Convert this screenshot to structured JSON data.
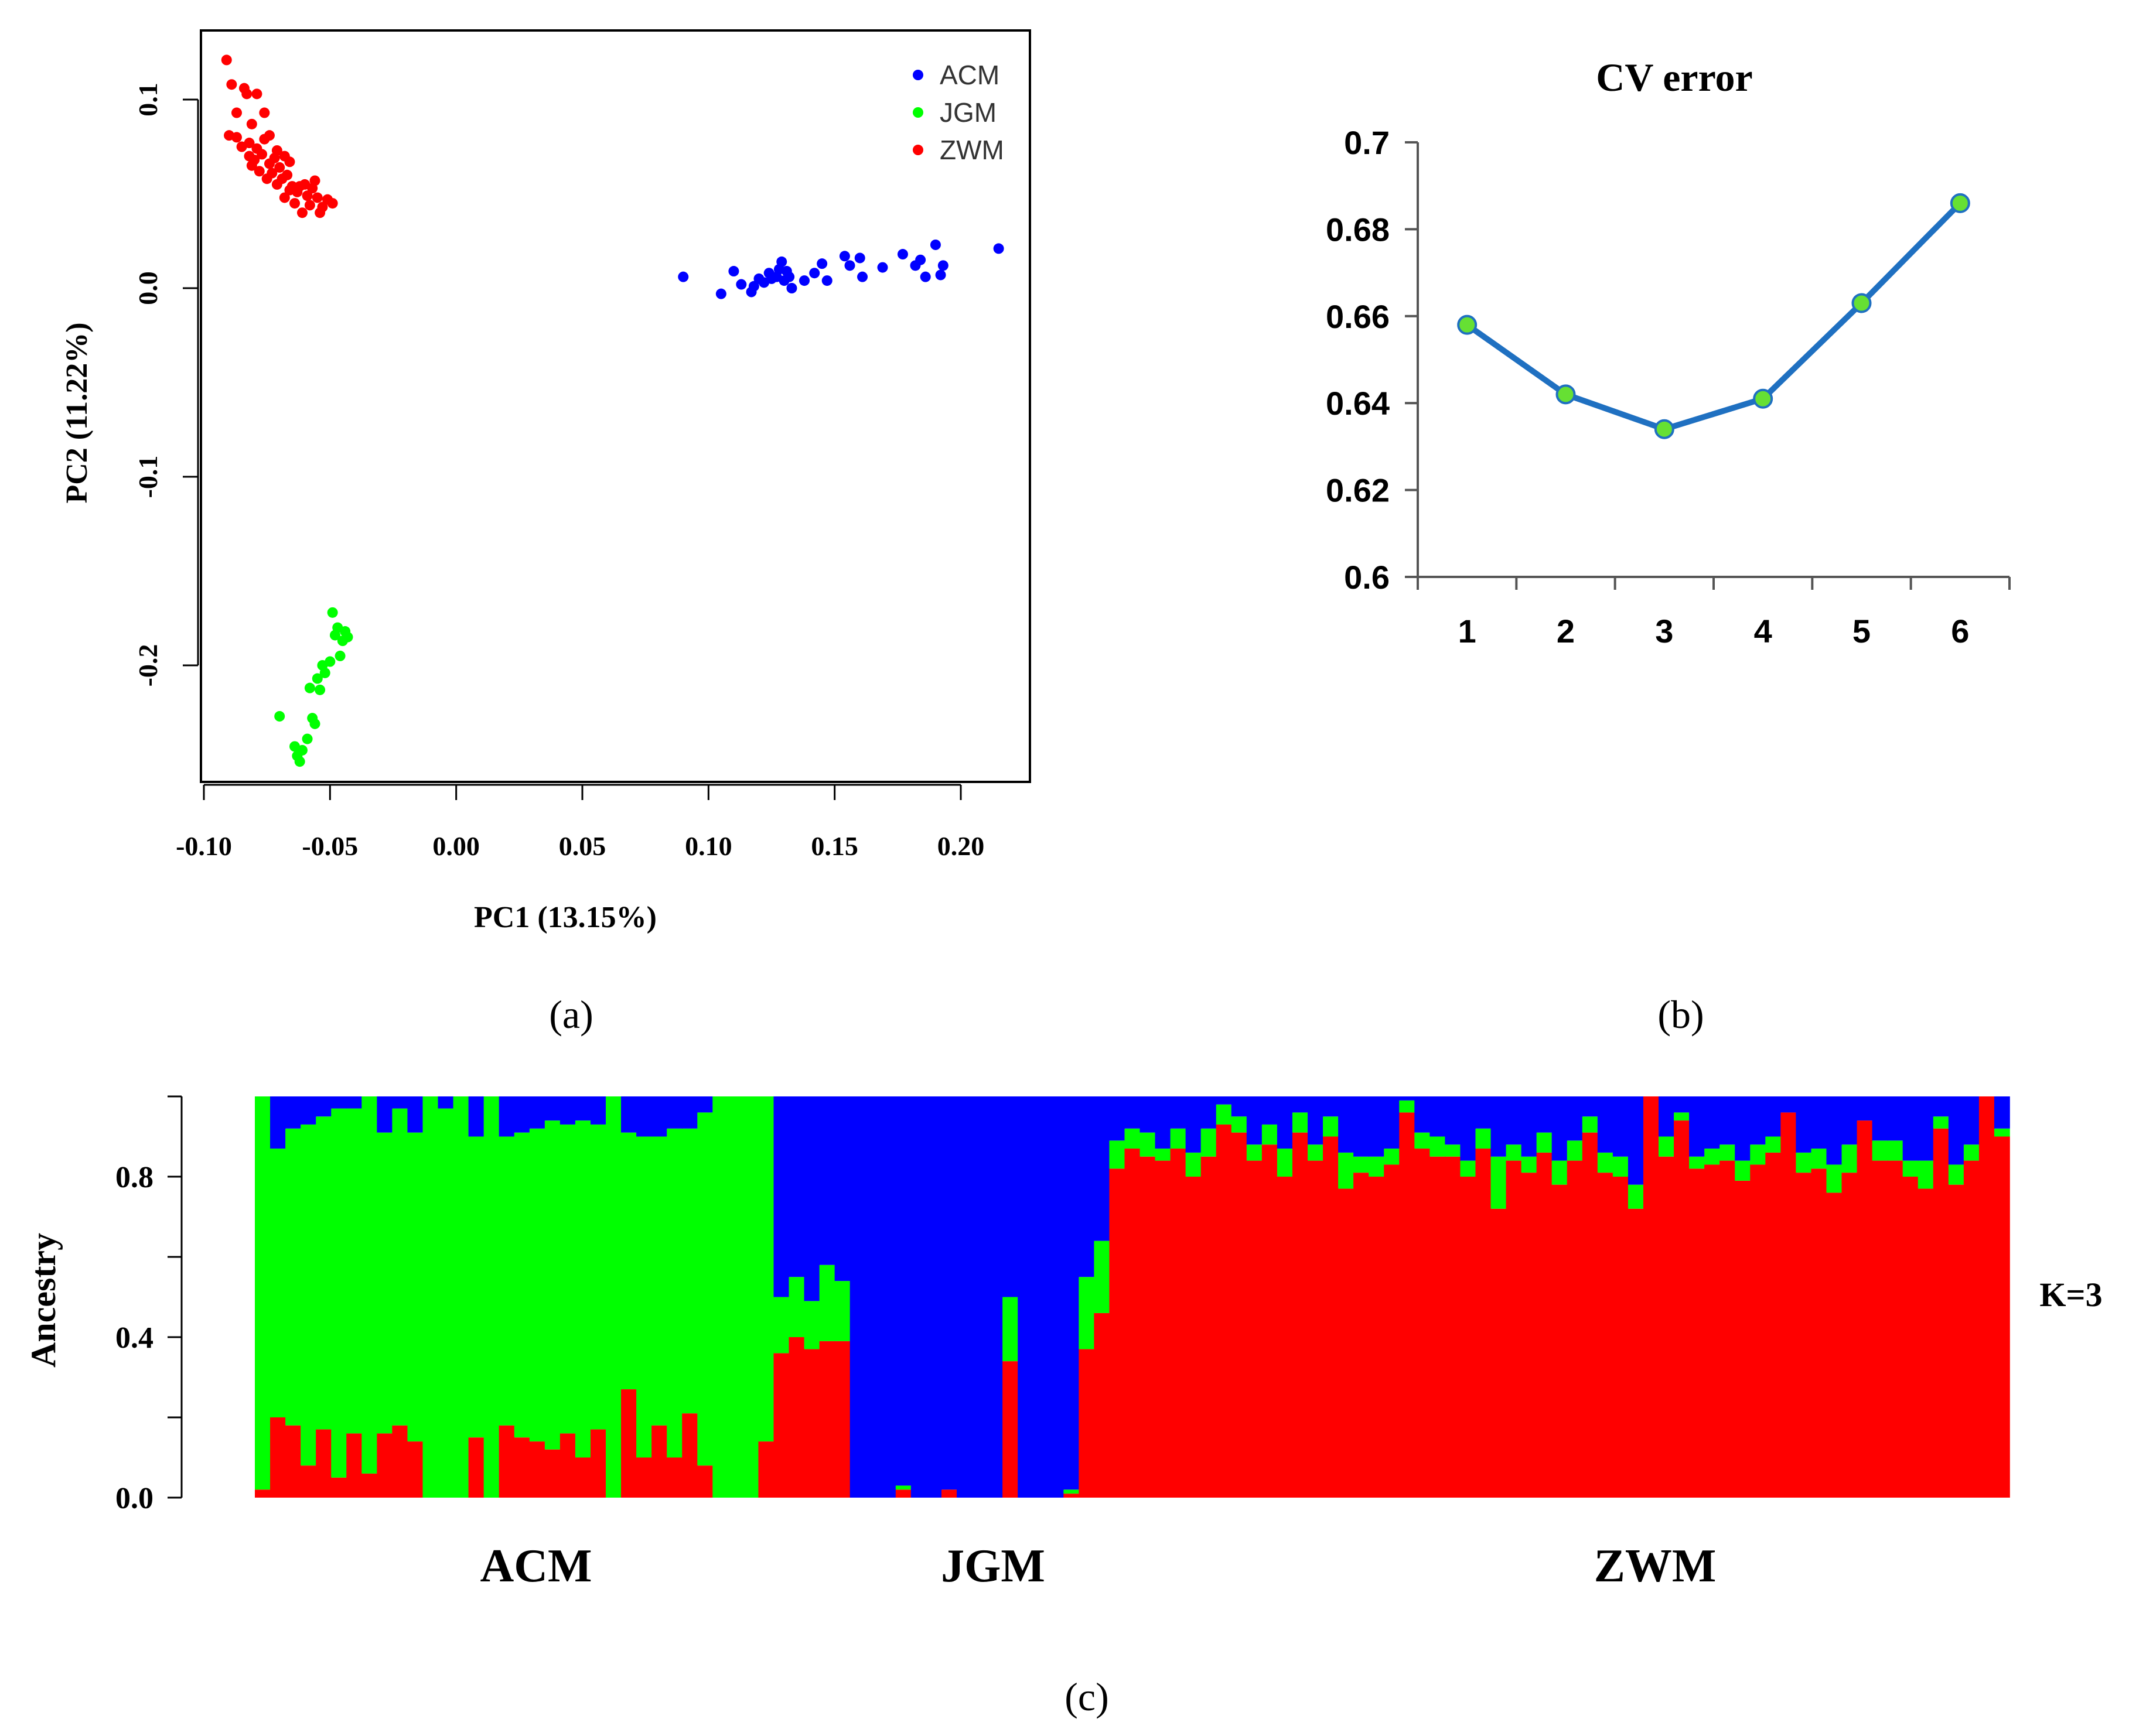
{
  "colors": {
    "ACM": "#0000ff",
    "JGM": "#00ff00",
    "ZWM": "#ff0000",
    "line": "#1f70c1",
    "marker": "#66e033",
    "axis": "#555555"
  },
  "panel_labels": {
    "a": "(a)",
    "b": "(b)",
    "c": "(c)"
  },
  "chart_data": [
    {
      "type": "scatter",
      "xlabel": "PC1 (13.15%)",
      "ylabel": "PC2 (11.22%)",
      "xlim": [
        -0.1,
        0.22
      ],
      "ylim": [
        -0.262,
        0.129
      ],
      "xticks": [
        -0.1,
        -0.05,
        0.0,
        0.05,
        0.1,
        0.15,
        0.2
      ],
      "xtick_labels": [
        "-0.10",
        "-0.05",
        "0.00",
        "0.05",
        "0.10",
        "0.15",
        "0.20"
      ],
      "yticks": [
        -0.2,
        -0.1,
        0.0,
        0.1
      ],
      "ytick_labels": [
        "-0.2",
        "-0.1",
        "0.0",
        "0.1"
      ],
      "legend_position": "top-right",
      "series": [
        {
          "name": "ACM",
          "points": [
            [
              0.09,
              0.006
            ],
            [
              0.105,
              -0.003
            ],
            [
              0.11,
              0.009
            ],
            [
              0.113,
              0.002
            ],
            [
              0.117,
              -0.002
            ],
            [
              0.118,
              0.001
            ],
            [
              0.12,
              0.005
            ],
            [
              0.122,
              0.003
            ],
            [
              0.124,
              0.008
            ],
            [
              0.125,
              0.005
            ],
            [
              0.127,
              0.006
            ],
            [
              0.128,
              0.01
            ],
            [
              0.129,
              0.014
            ],
            [
              0.13,
              0.004
            ],
            [
              0.131,
              0.009
            ],
            [
              0.132,
              0.006
            ],
            [
              0.133,
              0.0
            ],
            [
              0.138,
              0.004
            ],
            [
              0.142,
              0.008
            ],
            [
              0.145,
              0.013
            ],
            [
              0.147,
              0.004
            ],
            [
              0.154,
              0.017
            ],
            [
              0.156,
              0.012
            ],
            [
              0.16,
              0.016
            ],
            [
              0.161,
              0.006
            ],
            [
              0.169,
              0.011
            ],
            [
              0.177,
              0.018
            ],
            [
              0.182,
              0.012
            ],
            [
              0.184,
              0.015
            ],
            [
              0.186,
              0.006
            ],
            [
              0.19,
              0.023
            ],
            [
              0.192,
              0.007
            ],
            [
              0.193,
              0.012
            ],
            [
              0.215,
              0.021
            ]
          ]
        },
        {
          "name": "JGM",
          "points": [
            [
              -0.07,
              -0.227
            ],
            [
              -0.064,
              -0.243
            ],
            [
              -0.063,
              -0.248
            ],
            [
              -0.062,
              -0.251
            ],
            [
              -0.061,
              -0.245
            ],
            [
              -0.059,
              -0.239
            ],
            [
              -0.058,
              -0.212
            ],
            [
              -0.057,
              -0.228
            ],
            [
              -0.056,
              -0.231
            ],
            [
              -0.055,
              -0.207
            ],
            [
              -0.054,
              -0.213
            ],
            [
              -0.053,
              -0.2
            ],
            [
              -0.052,
              -0.204
            ],
            [
              -0.05,
              -0.198
            ],
            [
              -0.049,
              -0.172
            ],
            [
              -0.048,
              -0.184
            ],
            [
              -0.047,
              -0.18
            ],
            [
              -0.046,
              -0.195
            ],
            [
              -0.045,
              -0.187
            ],
            [
              -0.043,
              -0.185
            ],
            [
              -0.044,
              -0.182
            ]
          ]
        },
        {
          "name": "ZWM",
          "points": [
            [
              -0.091,
              0.121
            ],
            [
              -0.09,
              0.081
            ],
            [
              -0.089,
              0.108
            ],
            [
              -0.087,
              0.093
            ],
            [
              -0.087,
              0.08
            ],
            [
              -0.085,
              0.075
            ],
            [
              -0.084,
              0.106
            ],
            [
              -0.083,
              0.103
            ],
            [
              -0.082,
              0.07
            ],
            [
              -0.082,
              0.077
            ],
            [
              -0.081,
              0.087
            ],
            [
              -0.081,
              0.065
            ],
            [
              -0.08,
              0.068
            ],
            [
              -0.079,
              0.103
            ],
            [
              -0.079,
              0.074
            ],
            [
              -0.078,
              0.062
            ],
            [
              -0.077,
              0.071
            ],
            [
              -0.076,
              0.079
            ],
            [
              -0.076,
              0.093
            ],
            [
              -0.075,
              0.058
            ],
            [
              -0.074,
              0.066
            ],
            [
              -0.074,
              0.081
            ],
            [
              -0.073,
              0.061
            ],
            [
              -0.072,
              0.069
            ],
            [
              -0.071,
              0.055
            ],
            [
              -0.071,
              0.073
            ],
            [
              -0.07,
              0.064
            ],
            [
              -0.069,
              0.058
            ],
            [
              -0.068,
              0.048
            ],
            [
              -0.068,
              0.07
            ],
            [
              -0.067,
              0.06
            ],
            [
              -0.066,
              0.067
            ],
            [
              -0.066,
              0.052
            ],
            [
              -0.065,
              0.054
            ],
            [
              -0.064,
              0.045
            ],
            [
              -0.063,
              0.051
            ],
            [
              -0.062,
              0.054
            ],
            [
              -0.061,
              0.04
            ],
            [
              -0.06,
              0.055
            ],
            [
              -0.059,
              0.049
            ],
            [
              -0.058,
              0.044
            ],
            [
              -0.057,
              0.053
            ],
            [
              -0.056,
              0.057
            ],
            [
              -0.055,
              0.048
            ],
            [
              -0.054,
              0.04
            ],
            [
              -0.053,
              0.043
            ],
            [
              -0.051,
              0.047
            ],
            [
              -0.049,
              0.045
            ]
          ]
        }
      ]
    },
    {
      "type": "line",
      "title": "CV error",
      "categories": [
        "1",
        "2",
        "3",
        "4",
        "5",
        "6"
      ],
      "values": [
        0.658,
        0.642,
        0.634,
        0.641,
        0.663,
        0.686
      ],
      "ylim": [
        0.6,
        0.7
      ],
      "yticks": [
        0.6,
        0.62,
        0.64,
        0.66,
        0.68,
        0.7
      ],
      "ytick_labels": [
        "0.6",
        "0.62",
        "0.64",
        "0.66",
        "0.68",
        "0.7"
      ]
    },
    {
      "type": "bar",
      "stacked": true,
      "ylabel": "Ancestry",
      "ylim": [
        0,
        1
      ],
      "yticks": [
        0,
        0.4,
        0.8
      ],
      "ytick_labels": [
        "0.0",
        "0.4",
        "0.8"
      ],
      "annotation": "K=3",
      "group_labels": [
        "ACM",
        "JGM",
        "ZWM"
      ],
      "components": [
        "ZWM",
        "JGM",
        "ACM"
      ],
      "red": [
        0.02,
        0.2,
        0.18,
        0.08,
        0.17,
        0.05,
        0.16,
        0.06,
        0.16,
        0.18,
        0.14,
        0.0,
        0.0,
        0.0,
        0.15,
        0.0,
        0.18,
        0.15,
        0.14,
        0.12,
        0.16,
        0.1,
        0.17,
        0.0,
        0.27,
        0.1,
        0.18,
        0.1,
        0.21,
        0.08,
        0.0,
        0.0,
        0.0,
        0.14,
        0.36,
        0.4,
        0.37,
        0.39,
        0.39,
        0.0,
        0.0,
        0.0,
        0.02,
        0.0,
        0.0,
        0.02,
        0.0,
        0.0,
        0.0,
        0.34,
        0.0,
        0.0,
        0.0,
        0.01,
        0.37,
        0.46,
        0.82,
        0.87,
        0.85,
        0.84,
        0.87,
        0.8,
        0.85,
        0.93,
        0.91,
        0.84,
        0.88,
        0.8,
        0.91,
        0.84,
        0.9,
        0.77,
        0.81,
        0.8,
        0.83,
        0.96,
        0.87,
        0.85,
        0.85,
        0.8,
        0.87,
        0.72,
        0.84,
        0.81,
        0.86,
        0.78,
        0.84,
        0.91,
        0.81,
        0.8,
        0.72,
        1.0,
        0.85,
        0.94,
        0.82,
        0.83,
        0.84,
        0.79,
        0.83,
        0.86,
        0.96,
        0.81,
        0.82,
        0.76,
        0.81,
        0.94,
        0.84,
        0.84,
        0.8,
        0.77,
        0.92,
        0.78,
        0.84,
        1.0,
        0.9
      ],
      "green": [
        0.98,
        0.67,
        0.74,
        0.85,
        0.78,
        0.92,
        0.81,
        0.94,
        0.75,
        0.79,
        0.77,
        1.0,
        0.97,
        1.0,
        0.75,
        1.0,
        0.72,
        0.76,
        0.78,
        0.82,
        0.77,
        0.84,
        0.76,
        1.0,
        0.64,
        0.8,
        0.72,
        0.82,
        0.71,
        0.88,
        1.0,
        1.0,
        1.0,
        0.86,
        0.14,
        0.15,
        0.12,
        0.19,
        0.15,
        0.0,
        0.0,
        0.0,
        0.01,
        0.0,
        0.0,
        0.0,
        0.0,
        0.0,
        0.0,
        0.16,
        0.0,
        0.0,
        0.0,
        0.01,
        0.18,
        0.18,
        0.07,
        0.05,
        0.06,
        0.03,
        0.05,
        0.06,
        0.07,
        0.05,
        0.04,
        0.04,
        0.05,
        0.07,
        0.05,
        0.04,
        0.05,
        0.09,
        0.04,
        0.05,
        0.04,
        0.03,
        0.04,
        0.05,
        0.03,
        0.04,
        0.05,
        0.13,
        0.04,
        0.04,
        0.05,
        0.06,
        0.05,
        0.04,
        0.05,
        0.05,
        0.06,
        0.0,
        0.05,
        0.02,
        0.03,
        0.04,
        0.04,
        0.05,
        0.05,
        0.04,
        0.0,
        0.05,
        0.05,
        0.07,
        0.07,
        0.0,
        0.05,
        0.05,
        0.04,
        0.07,
        0.03,
        0.05,
        0.04,
        0.0,
        0.02
      ]
    }
  ]
}
